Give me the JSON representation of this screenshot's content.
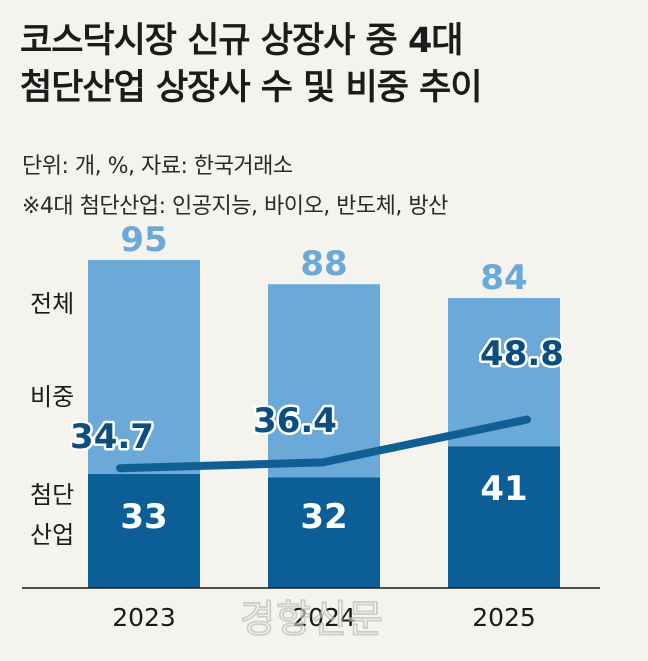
{
  "title_line1": "코스닥시장 신규 상장사 중 4대",
  "title_line2": "첨단산업 상장사 수 및 비중 추이",
  "unit_note": "단위: 개, %, 자료: 한국거래소",
  "footnote": "※4대 첨단산업: 인공지능, 바이오, 반도체, 방산",
  "watermark": "경향신문",
  "colors": {
    "total_bar": "#6aa9d8",
    "advanced_bar": "#0b5e96",
    "share_line": "#0f5f93",
    "total_label": "#6aa9d8",
    "share_label": "#0b4f80",
    "background": "#f4f3ee"
  },
  "chart_data": {
    "type": "bar",
    "categories": [
      "2023",
      "2024",
      "2025"
    ],
    "series": [
      {
        "name": "전체",
        "values": [
          95,
          88,
          84
        ]
      },
      {
        "name": "첨단산업",
        "values": [
          33,
          32,
          41
        ]
      }
    ],
    "line_series": {
      "name": "비중",
      "values": [
        34.7,
        36.4,
        48.8
      ]
    },
    "side_labels": {
      "total": "전체",
      "share": "비중",
      "advanced_line1": "첨단",
      "advanced_line2": "산업"
    },
    "ylim": [
      0,
      104
    ]
  }
}
